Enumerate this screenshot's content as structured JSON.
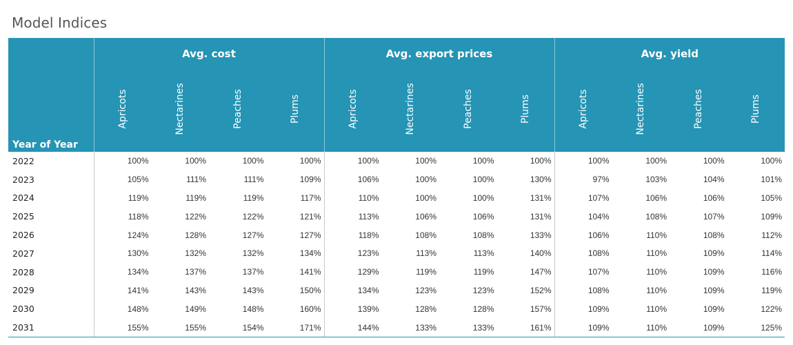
{
  "title": "Model Indices",
  "colors": {
    "header_bg": "#2594b5",
    "header_text": "#ffffff",
    "cell_text": "#333333"
  },
  "chart_data": {
    "type": "table",
    "title": "Model Indices",
    "row_header": "Year of Year",
    "groups": [
      {
        "name": "Avg. cost",
        "columns": [
          "Apricots",
          "Nectarines",
          "Peaches",
          "Plums"
        ]
      },
      {
        "name": "Avg. export prices",
        "columns": [
          "Apricots",
          "Nectarines",
          "Peaches",
          "Plums"
        ]
      },
      {
        "name": "Avg. yield",
        "columns": [
          "Apricots",
          "Nectarines",
          "Peaches",
          "Plums"
        ]
      }
    ],
    "rows": [
      {
        "year": "2022",
        "values": [
          "100%",
          "100%",
          "100%",
          "100%",
          "100%",
          "100%",
          "100%",
          "100%",
          "100%",
          "100%",
          "100%",
          "100%"
        ]
      },
      {
        "year": "2023",
        "values": [
          "105%",
          "111%",
          "111%",
          "109%",
          "106%",
          "100%",
          "100%",
          "130%",
          "97%",
          "103%",
          "104%",
          "101%"
        ]
      },
      {
        "year": "2024",
        "values": [
          "119%",
          "119%",
          "119%",
          "117%",
          "110%",
          "100%",
          "100%",
          "131%",
          "107%",
          "106%",
          "106%",
          "105%"
        ]
      },
      {
        "year": "2025",
        "values": [
          "118%",
          "122%",
          "122%",
          "121%",
          "113%",
          "106%",
          "106%",
          "131%",
          "104%",
          "108%",
          "107%",
          "109%"
        ]
      },
      {
        "year": "2026",
        "values": [
          "124%",
          "128%",
          "127%",
          "127%",
          "118%",
          "108%",
          "108%",
          "133%",
          "106%",
          "110%",
          "108%",
          "112%"
        ]
      },
      {
        "year": "2027",
        "values": [
          "130%",
          "132%",
          "132%",
          "134%",
          "123%",
          "113%",
          "113%",
          "140%",
          "108%",
          "110%",
          "109%",
          "114%"
        ]
      },
      {
        "year": "2028",
        "values": [
          "134%",
          "137%",
          "137%",
          "141%",
          "129%",
          "119%",
          "119%",
          "147%",
          "107%",
          "110%",
          "109%",
          "116%"
        ]
      },
      {
        "year": "2029",
        "values": [
          "141%",
          "143%",
          "143%",
          "150%",
          "134%",
          "123%",
          "123%",
          "152%",
          "108%",
          "110%",
          "109%",
          "119%"
        ]
      },
      {
        "year": "2030",
        "values": [
          "148%",
          "149%",
          "148%",
          "160%",
          "139%",
          "128%",
          "128%",
          "157%",
          "109%",
          "110%",
          "109%",
          "122%"
        ]
      },
      {
        "year": "2031",
        "values": [
          "155%",
          "155%",
          "154%",
          "171%",
          "144%",
          "133%",
          "133%",
          "161%",
          "109%",
          "110%",
          "109%",
          "125%"
        ]
      }
    ]
  }
}
